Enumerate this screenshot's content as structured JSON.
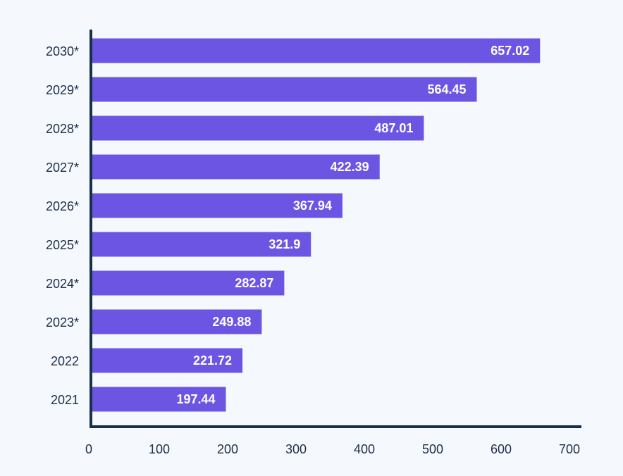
{
  "chart_data": {
    "type": "bar",
    "orientation": "horizontal",
    "categories": [
      "2030*",
      "2029*",
      "2028*",
      "2027*",
      "2026*",
      "2025*",
      "2024*",
      "2023*",
      "2022",
      "2021"
    ],
    "values": [
      657.02,
      564.45,
      487.01,
      422.39,
      367.94,
      321.9,
      282.87,
      249.88,
      221.72,
      197.44
    ],
    "value_labels": [
      "657.02",
      "564.45",
      "487.01",
      "422.39",
      "367.94",
      "321.9",
      "282.87",
      "249.88",
      "221.72",
      "197.44"
    ],
    "title": "",
    "xlabel": "",
    "ylabel": "",
    "xlim": [
      0,
      700
    ],
    "x_ticks": [
      "0",
      "100",
      "200",
      "300",
      "400",
      "500",
      "600",
      "700"
    ],
    "grid": false,
    "legend": "none",
    "colors": {
      "bar": "#6c55e3",
      "axis": "#14304a",
      "background": "#f5f9fe",
      "text": "#203046",
      "value_text": "#ffffff"
    }
  }
}
